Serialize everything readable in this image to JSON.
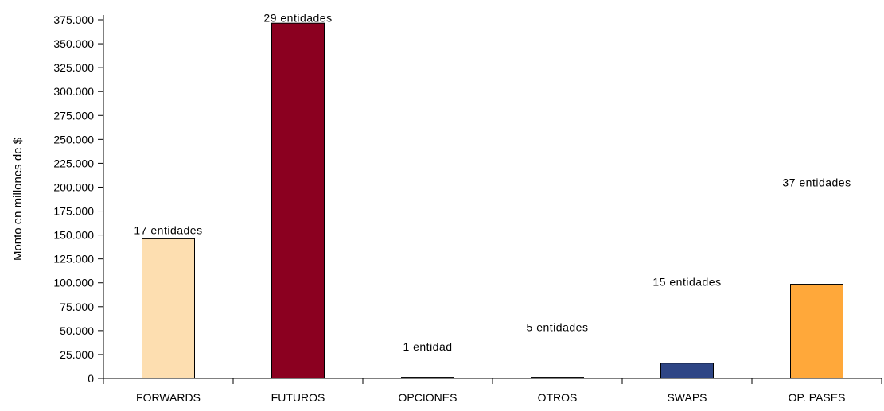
{
  "chart_data": {
    "type": "bar",
    "ylabel": "Monto en millones de $",
    "xlabel": "",
    "ylim": [
      0,
      375000
    ],
    "ytick_step": 25000,
    "ytick_labels": [
      "0",
      "25.000",
      "50.000",
      "75.000",
      "100.000",
      "125.000",
      "150.000",
      "175.000",
      "200.000",
      "225.000",
      "250.000",
      "275.000",
      "300.000",
      "325.000",
      "350.000",
      "375.000"
    ],
    "categories": [
      "FORWARDS",
      "FUTUROS",
      "OPCIONES",
      "OTROS",
      "SWAPS",
      "OP. PASES"
    ],
    "values": [
      146000,
      371500,
      1200,
      1200,
      16000,
      98500
    ],
    "data_labels": [
      "17 entidades",
      "29 entidades",
      "1 entidad",
      "5 entidades",
      "15 entidades",
      "37 entidades"
    ],
    "data_label_values": [
      151000,
      373000,
      29000,
      49500,
      97000,
      201000
    ],
    "colors": [
      "#FDDEB0",
      "#8B0020",
      "#1a1a1a",
      "#1a1a1a",
      "#2E4585",
      "#FFA83A"
    ],
    "grid": false,
    "legend": "none"
  }
}
